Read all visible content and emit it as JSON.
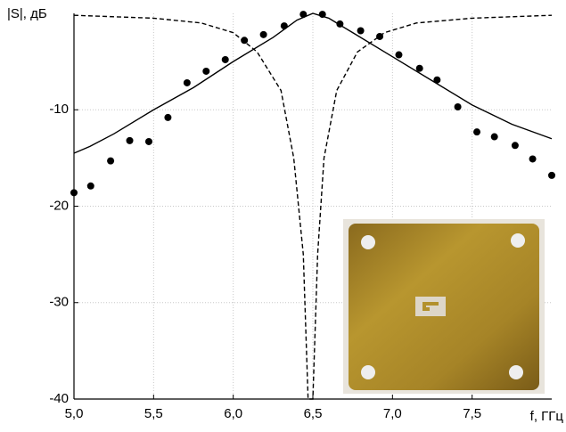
{
  "chart_data": {
    "type": "line",
    "y_label": "|S|, дБ",
    "x_label": "f, ГГц",
    "xlim": [
      5,
      8
    ],
    "ylim": [
      -40,
      0
    ],
    "xticks": [
      {
        "value": 5,
        "label": "5,0"
      },
      {
        "value": 5.5,
        "label": "5,5"
      },
      {
        "value": 6,
        "label": "6,0"
      },
      {
        "value": 6.5,
        "label": "6,5"
      },
      {
        "value": 7,
        "label": "7,0"
      },
      {
        "value": 7.5,
        "label": "7,5"
      }
    ],
    "yticks": [
      -40,
      -30,
      -20,
      -10
    ],
    "grid": true,
    "series": [
      {
        "style": "solid",
        "color": "#000000",
        "x": [
          5.0,
          5.1,
          5.25,
          5.5,
          5.75,
          6.0,
          6.25,
          6.4,
          6.5,
          6.6,
          6.75,
          7.0,
          7.25,
          7.5,
          7.75,
          8.0
        ],
        "values": [
          -14.5,
          -13.8,
          -12.5,
          -10,
          -7.7,
          -5,
          -2.5,
          -0.7,
          0,
          -0.5,
          -2,
          -4.5,
          -7,
          -9.5,
          -11.5,
          -13
        ]
      },
      {
        "style": "dashed",
        "color": "#000000",
        "x": [
          5.0,
          5.5,
          5.8,
          6.0,
          6.15,
          6.3,
          6.38,
          6.44,
          6.47,
          6.5,
          6.53,
          6.57,
          6.65,
          6.78,
          6.95,
          7.15,
          7.5,
          8.0
        ],
        "values": [
          -0.2,
          -0.5,
          -1,
          -2,
          -4,
          -8,
          -15,
          -25,
          -40,
          -40,
          -25,
          -15,
          -8,
          -4,
          -2,
          -1,
          -0.5,
          -0.2
        ]
      },
      {
        "style": "markers",
        "color": "#000000",
        "x": [
          5.0,
          5.105,
          5.23,
          5.35,
          5.47,
          5.59,
          5.71,
          5.83,
          5.95,
          6.07,
          6.19,
          6.32,
          6.44,
          6.56,
          6.67,
          6.8,
          6.92,
          7.04,
          7.17,
          7.28,
          7.41,
          7.53,
          7.64,
          7.77,
          7.88,
          8.0
        ],
        "values": [
          -18.6,
          -17.9,
          -15.3,
          -13.2,
          -13.3,
          -10.8,
          -7.2,
          -6.0,
          -4.8,
          -2.8,
          -2.2,
          -1.3,
          -0.1,
          -0.1,
          -1.1,
          -1.8,
          -2.4,
          -4.3,
          -5.7,
          -6.9,
          -9.7,
          -12.3,
          -12.8,
          -13.7,
          -15.1,
          -16.8
        ]
      }
    ]
  }
}
